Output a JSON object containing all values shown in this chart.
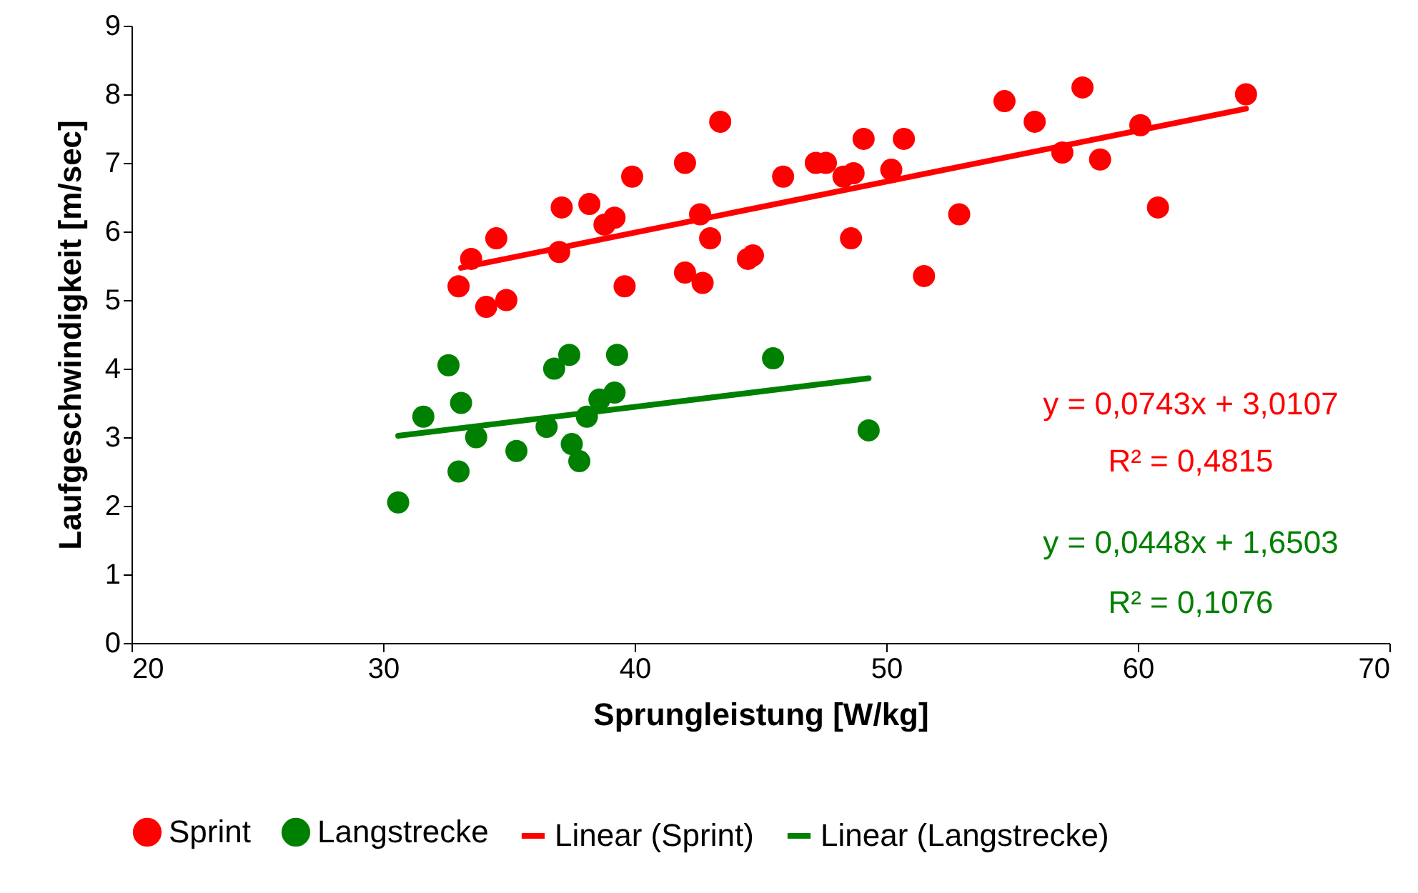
{
  "chart_data": {
    "type": "scatter",
    "xlabel": "Sprungleistung [W/kg]",
    "ylabel": "Laufgeschwindigkeit [m/sec]",
    "xlim": [
      20,
      70
    ],
    "xticks": [
      20,
      30,
      40,
      50,
      60,
      70
    ],
    "ylim": [
      0,
      9
    ],
    "yticks": [
      0,
      1,
      2,
      3,
      4,
      5,
      6,
      7,
      8,
      9
    ],
    "grid": false,
    "legend": "bottom",
    "series": [
      {
        "name": "Sprint",
        "color": "#ff0000",
        "marker": "circle",
        "x": [
          33.0,
          33.5,
          34.1,
          34.5,
          34.9,
          37.0,
          37.1,
          38.2,
          38.8,
          39.2,
          39.6,
          39.9,
          42.0,
          42.0,
          42.6,
          42.7,
          43.0,
          43.4,
          44.5,
          44.7,
          45.9,
          47.2,
          47.6,
          48.3,
          48.6,
          48.7,
          49.1,
          50.2,
          50.7,
          51.5,
          52.9,
          54.7,
          55.9,
          57.0,
          57.8,
          58.5,
          60.1,
          60.8,
          64.3
        ],
        "values": [
          5.2,
          5.6,
          4.9,
          5.9,
          5.0,
          5.7,
          6.35,
          6.4,
          6.1,
          6.2,
          5.2,
          6.8,
          7.0,
          5.4,
          6.25,
          5.25,
          5.9,
          7.6,
          5.6,
          5.65,
          6.8,
          7.0,
          7.0,
          6.8,
          5.9,
          6.85,
          7.35,
          6.9,
          7.35,
          5.35,
          6.25,
          7.9,
          7.6,
          7.15,
          8.1,
          7.05,
          7.55,
          6.35,
          8.0
        ]
      },
      {
        "name": "Langstrecke",
        "color": "#008000",
        "marker": "circle",
        "x": [
          30.6,
          31.6,
          32.6,
          33.1,
          33.0,
          33.7,
          35.3,
          36.5,
          36.8,
          37.4,
          37.5,
          37.8,
          38.1,
          38.6,
          39.2,
          39.3,
          45.5,
          49.3
        ],
        "values": [
          2.05,
          3.3,
          4.05,
          3.5,
          2.5,
          3.0,
          2.8,
          3.15,
          4.0,
          4.2,
          2.9,
          2.65,
          3.3,
          3.55,
          3.65,
          4.2,
          4.15,
          3.1
        ]
      },
      {
        "name": "Linear (Sprint)",
        "type": "line",
        "marker": "none",
        "color": "#ff0000",
        "x": [
          33.1,
          64.3
        ],
        "values": [
          5.47,
          7.79
        ]
      },
      {
        "name": "Linear (Langstrecke)",
        "type": "line",
        "marker": "none",
        "color": "#008000",
        "x": [
          30.6,
          49.3
        ],
        "values": [
          3.02,
          3.86
        ]
      }
    ],
    "annotations": [
      "y = 0,0743x + 3,0107",
      "R² = 0,4815",
      "y = 0,0448x + 1,6503",
      "R² = 0,1076"
    ]
  }
}
